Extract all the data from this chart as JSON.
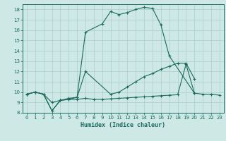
{
  "xlabel": "Humidex (Indice chaleur)",
  "bg_color": "#cde8e5",
  "grid_color": "#aacfcc",
  "line_color": "#1a6b5e",
  "xlim": [
    -0.5,
    23.5
  ],
  "ylim": [
    8,
    18.5
  ],
  "xticks": [
    0,
    1,
    2,
    3,
    4,
    5,
    6,
    7,
    8,
    9,
    10,
    11,
    12,
    13,
    14,
    15,
    16,
    17,
    18,
    19,
    20,
    21,
    22,
    23
  ],
  "yticks": [
    8,
    9,
    10,
    11,
    12,
    13,
    14,
    15,
    16,
    17,
    18
  ],
  "curve_top": {
    "x": [
      0,
      1,
      2,
      3,
      4,
      5,
      6,
      7,
      9,
      10,
      11,
      12,
      13,
      14,
      15,
      16,
      17,
      20
    ],
    "y": [
      9.8,
      10.0,
      9.8,
      8.2,
      9.2,
      9.3,
      9.5,
      15.8,
      16.6,
      17.8,
      17.5,
      17.7,
      18.0,
      18.2,
      18.1,
      16.5,
      13.5,
      9.9
    ]
  },
  "curve_mid": {
    "x": [
      0,
      1,
      2,
      3,
      4,
      5,
      6,
      7,
      10,
      11,
      12,
      13,
      14,
      15,
      16,
      17,
      18,
      19,
      20
    ],
    "y": [
      9.8,
      10.0,
      9.8,
      9.0,
      9.2,
      9.4,
      9.5,
      12.0,
      9.8,
      10.0,
      10.5,
      11.0,
      11.5,
      11.8,
      12.2,
      12.5,
      12.8,
      12.8,
      11.3
    ]
  },
  "curve_bot": {
    "x": [
      0,
      1,
      2,
      3,
      4,
      5,
      6,
      7,
      8,
      9,
      10,
      11,
      12,
      13,
      14,
      15,
      16,
      17,
      18,
      19,
      20,
      21,
      22,
      23
    ],
    "y": [
      9.8,
      10.0,
      9.8,
      8.2,
      9.2,
      9.3,
      9.3,
      9.4,
      9.3,
      9.3,
      9.35,
      9.4,
      9.45,
      9.5,
      9.55,
      9.6,
      9.65,
      9.7,
      9.75,
      12.7,
      9.9,
      9.8,
      9.8,
      9.7
    ]
  }
}
